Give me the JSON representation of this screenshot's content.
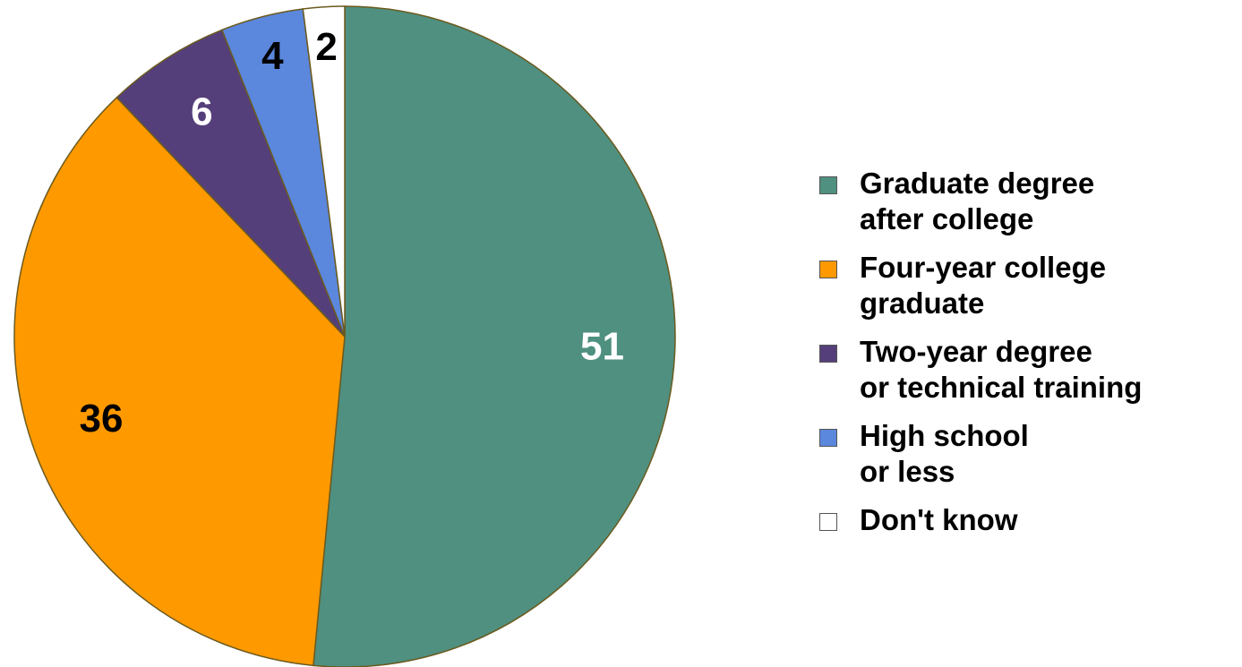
{
  "chart_data": {
    "type": "pie",
    "categories": [
      "Graduate degree\nafter college",
      "Four-year college\ngraduate",
      "Two-year degree\nor technical training",
      "High school\nor less",
      "Don't know"
    ],
    "values": [
      51,
      36,
      6,
      4,
      2
    ],
    "colors": [
      "#4f9080",
      "#ff9900",
      "#553f7a",
      "#5b87dd",
      "#ffffff"
    ],
    "label_colors": [
      "#ffffff",
      "#000000",
      "#ffffff",
      "#000000",
      "#000000"
    ],
    "legend": "right"
  }
}
